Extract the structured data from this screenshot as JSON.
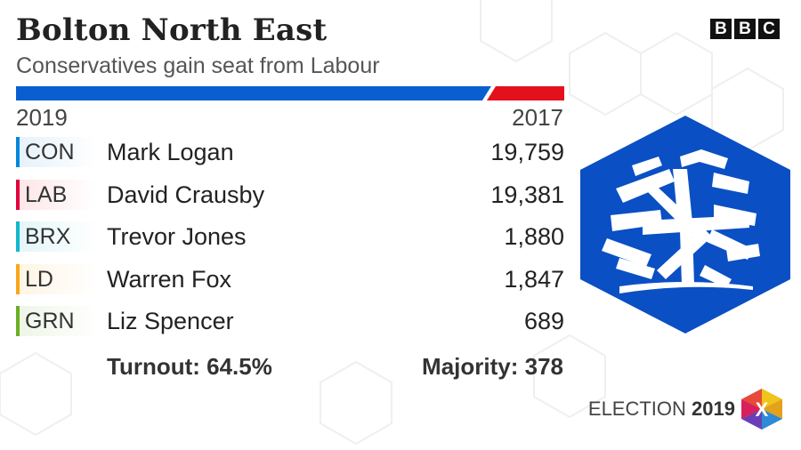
{
  "header": {
    "title": "Bolton North East",
    "subtitle": "Conservatives gain seat from Labour",
    "brand_letters": [
      "B",
      "B",
      "C"
    ]
  },
  "bar": {
    "winner_color": "#0a5fd0",
    "previous_color": "#e4111d"
  },
  "years": {
    "current": "2019",
    "previous": "2017"
  },
  "results": [
    {
      "party": "CON",
      "candidate": "Mark Logan",
      "votes": "19,759",
      "color": "#0087dc",
      "bg": "#e6f2fb"
    },
    {
      "party": "LAB",
      "candidate": "David Crausby",
      "votes": "19,381",
      "color": "#e4003b",
      "bg": "#fde6e8"
    },
    {
      "party": "BRX",
      "candidate": "Trevor Jones",
      "votes": "1,880",
      "color": "#12b6cf",
      "bg": "#e3f6f9"
    },
    {
      "party": "LD",
      "candidate": "Warren Fox",
      "votes": "1,847",
      "color": "#faa61a",
      "bg": "#fef5e4"
    },
    {
      "party": "GRN",
      "candidate": "Liz Spencer",
      "votes": "689",
      "color": "#6ab023",
      "bg": "#eef6e6"
    }
  ],
  "summary": {
    "turnout": "Turnout: 64.5%",
    "majority": "Majority: 378"
  },
  "footer": {
    "label": "ELECTION",
    "year": "2019",
    "badge_letter": "X"
  },
  "logo": {
    "color": "#0a4fc4",
    "icon": "conservative-tree-icon"
  }
}
